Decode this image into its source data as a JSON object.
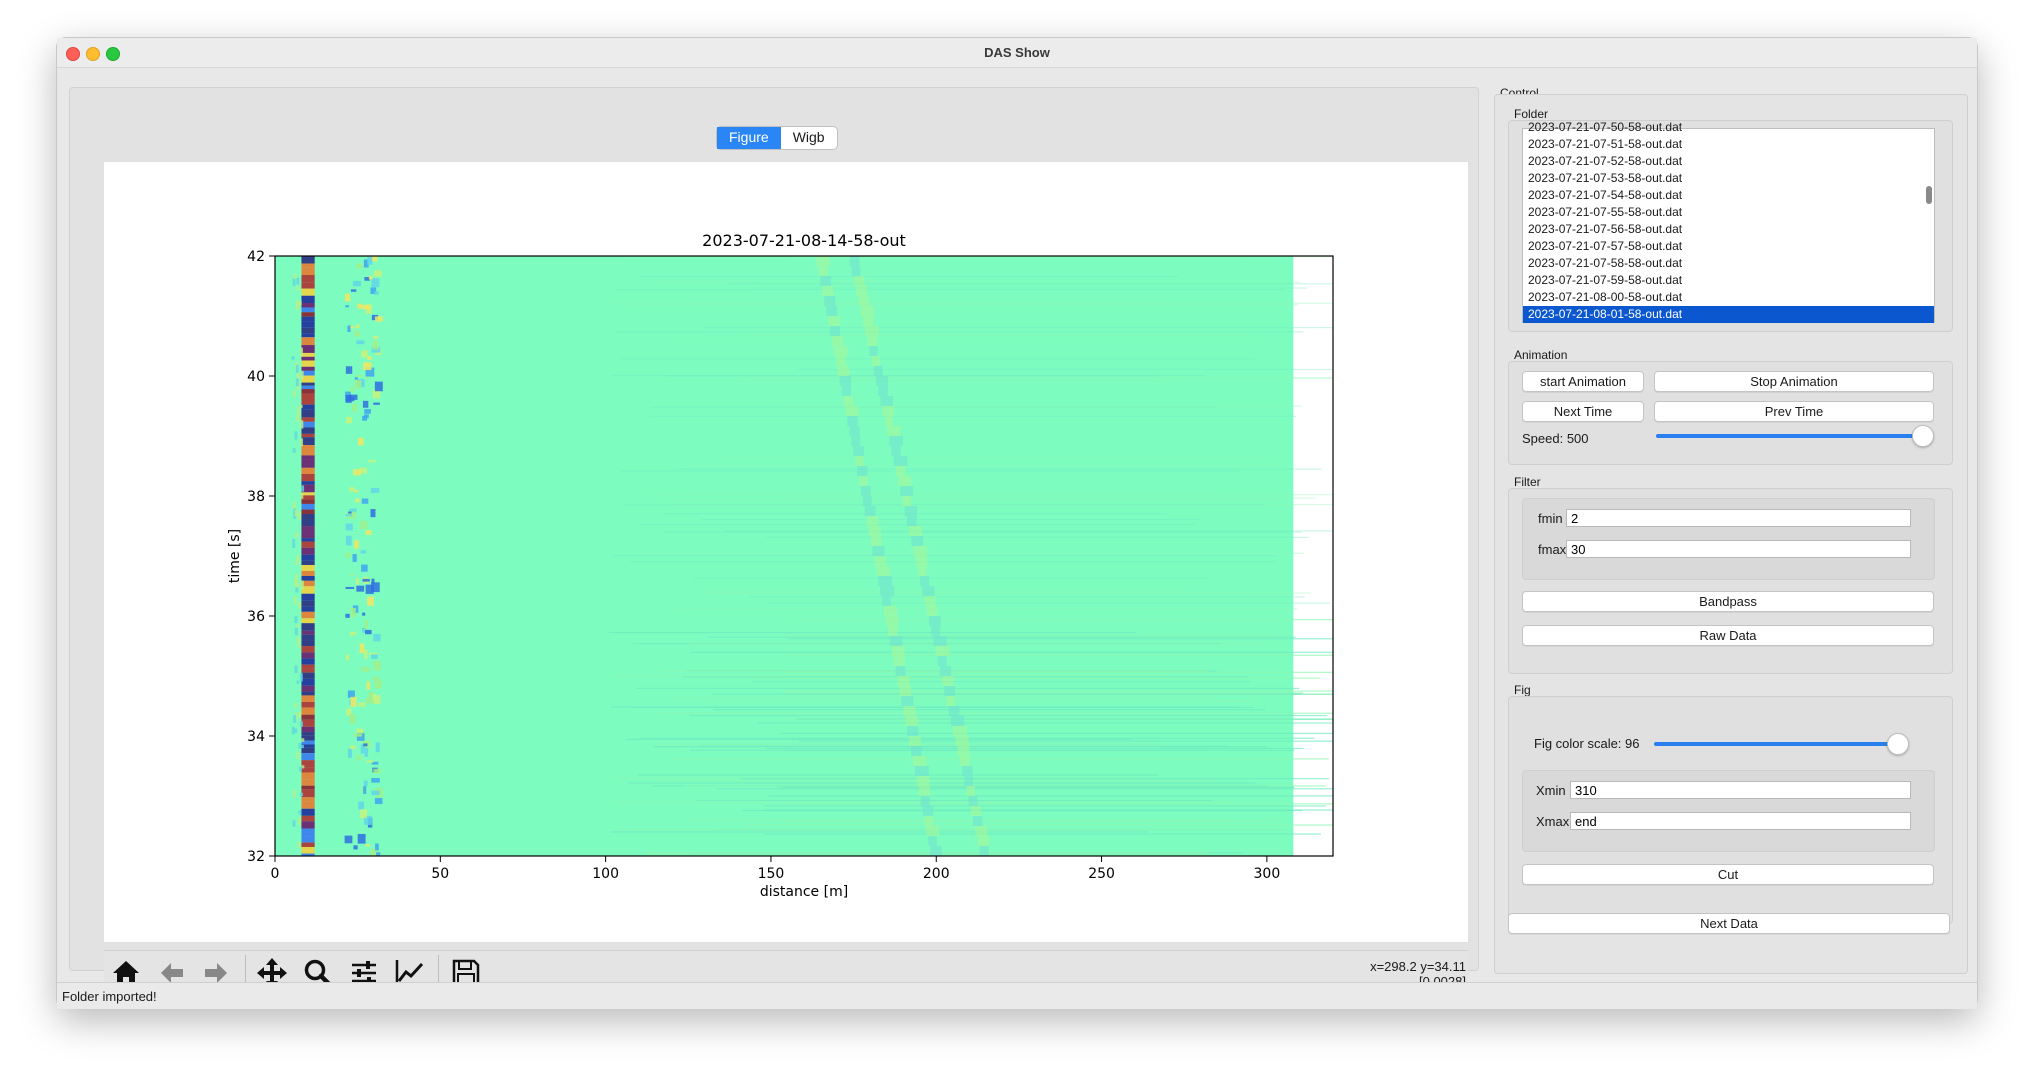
{
  "window": {
    "title": "DAS Show"
  },
  "tabs": [
    {
      "label": "Figure",
      "active": true
    },
    {
      "label": "Wigb",
      "active": false
    }
  ],
  "chart_data": {
    "type": "heatmap",
    "title": "2023-07-21-08-14-58-out",
    "xlabel": "distance [m]",
    "ylabel": "time [s]",
    "xlim": [
      0,
      320
    ],
    "ylim": [
      32,
      42
    ],
    "data_extent_x": [
      0,
      308
    ],
    "xticks": [
      0,
      50,
      100,
      150,
      200,
      250,
      300
    ],
    "yticks": [
      32,
      34,
      36,
      38,
      40,
      42
    ],
    "colormap": "jet",
    "background_color": "#7dfcc0",
    "features": [
      {
        "x": 10,
        "width": 4,
        "kind": "strong_alternating_red_blue"
      },
      {
        "x": 24,
        "width": 6,
        "kind": "yellow_blue_noise"
      },
      {
        "x_top": 165,
        "x_bottom": 200,
        "kind": "faint_diagonal_band"
      },
      {
        "x_top": 175,
        "x_bottom": 215,
        "kind": "faint_diagonal_band"
      }
    ]
  },
  "toolbar": {
    "icons": [
      "home-icon",
      "back-arrow-icon",
      "forward-arrow-icon",
      "pan-icon",
      "zoom-icon",
      "configure-subplots-icon",
      "edit-axis-icon",
      "save-icon"
    ],
    "coords_line1": "x=298.2 y=34.11",
    "coords_line2": "[0.0028]"
  },
  "status": {
    "text": "Folder imported!"
  },
  "control": {
    "title": "Control",
    "folder": {
      "label": "Folder",
      "cut_item": "2023-07-21-07-50-58-out.dat",
      "items": [
        "2023-07-21-07-51-58-out.dat",
        "2023-07-21-07-52-58-out.dat",
        "2023-07-21-07-53-58-out.dat",
        "2023-07-21-07-54-58-out.dat",
        "2023-07-21-07-55-58-out.dat",
        "2023-07-21-07-56-58-out.dat",
        "2023-07-21-07-57-58-out.dat",
        "2023-07-21-07-58-58-out.dat",
        "2023-07-21-07-59-58-out.dat",
        "2023-07-21-08-00-58-out.dat",
        "2023-07-21-08-01-58-out.dat"
      ],
      "selected_index": 10
    },
    "animation": {
      "label": "Animation",
      "start": "start Animation",
      "stop": "Stop Animation",
      "next": "Next Time",
      "prev": "Prev Time",
      "speed_label": "Speed: 500",
      "speed_fraction": 1.0
    },
    "filter": {
      "label": "Filter",
      "fmin_label": "fmin",
      "fmin_value": "2",
      "fmax_label": "fmax",
      "fmax_value": "30",
      "bandpass": "Bandpass",
      "raw": "Raw Data"
    },
    "fig": {
      "label": "Fig",
      "scale_label": "Fig color scale: 96",
      "scale_fraction": 0.96,
      "xmin_label": "Xmin",
      "xmin_value": "310",
      "xmax_label": "Xmax",
      "xmax_value": "end",
      "cut": "Cut"
    },
    "next_data": "Next Data"
  }
}
